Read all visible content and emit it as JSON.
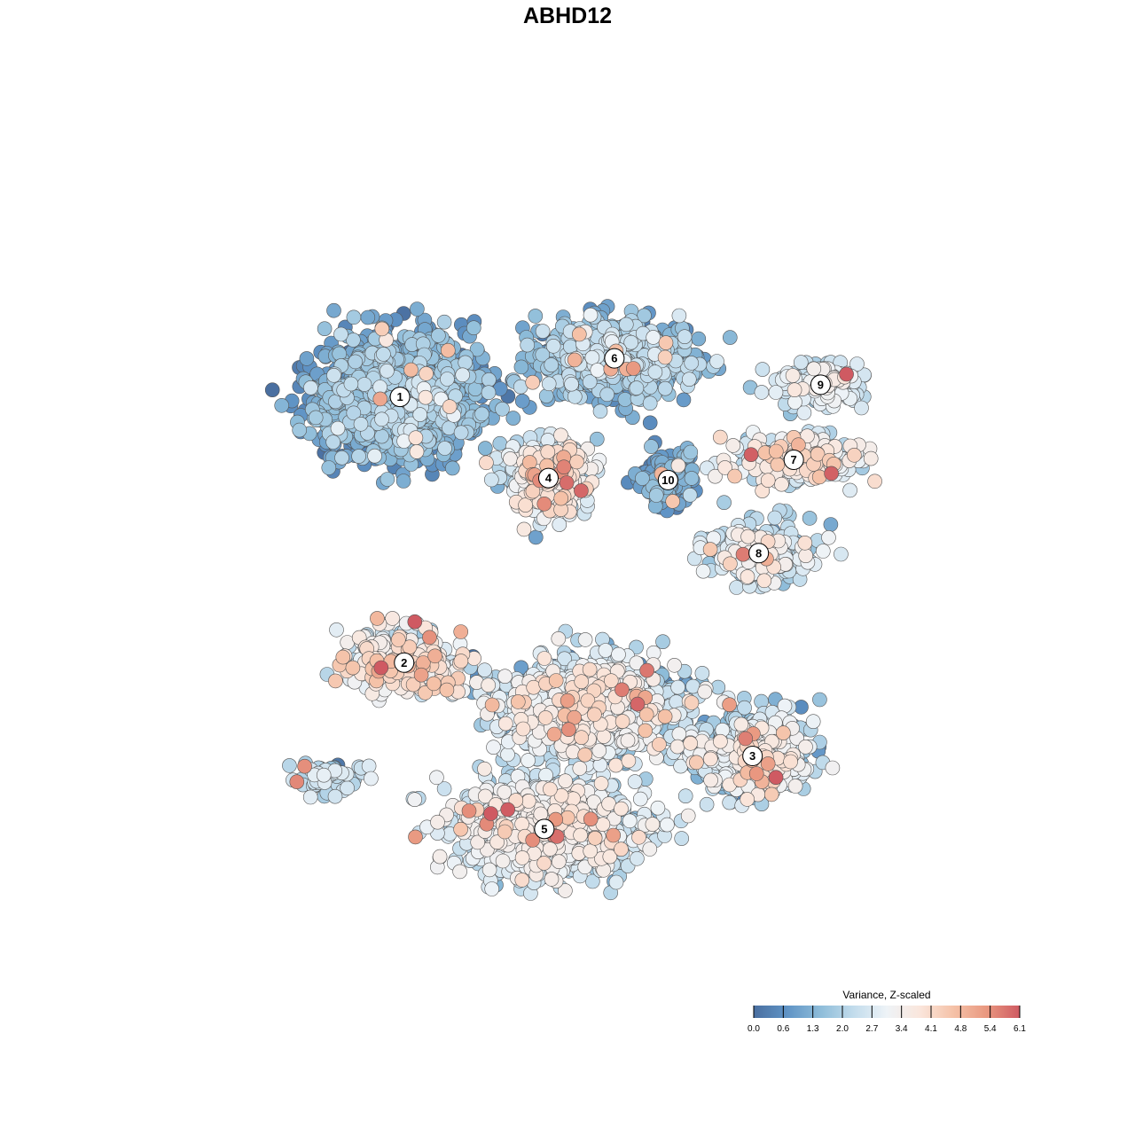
{
  "chart_data": {
    "type": "scatter",
    "title": "ABHD12",
    "legend": {
      "title": "Variance, Z-scaled",
      "range": [
        0.0,
        6.1
      ],
      "ticks": [
        "0.0",
        "0.6",
        "1.3",
        "2.0",
        "2.7",
        "3.4",
        "4.1",
        "4.8",
        "5.4",
        "6.1"
      ],
      "colors": [
        "#4a6fa0",
        "#5f93c5",
        "#8dbcd9",
        "#c2dcec",
        "#eef3f7",
        "#fae6dc",
        "#f5c2a8",
        "#e99880",
        "#cf5a62"
      ],
      "placement": "bottom-right"
    },
    "clusters": [
      {
        "label": "1",
        "x": -9.2,
        "y": 8.3,
        "sx": 3.6,
        "sy": 2.6,
        "n": 1500,
        "mean": 1.15,
        "sd": 0.6
      },
      {
        "label": "6",
        "x": 1.2,
        "y": 10.2,
        "sx": 3.4,
        "sy": 1.6,
        "n": 800,
        "mean": 1.5,
        "sd": 0.6
      },
      {
        "label": "9",
        "x": 11.2,
        "y": 8.9,
        "sx": 2.0,
        "sy": 1.0,
        "n": 180,
        "mean": 2.6,
        "sd": 0.5
      },
      {
        "label": "7",
        "x": 9.9,
        "y": 5.2,
        "sx": 2.6,
        "sy": 1.0,
        "n": 300,
        "mean": 2.9,
        "sd": 0.7
      },
      {
        "label": "4",
        "x": -2.0,
        "y": 4.3,
        "sx": 1.6,
        "sy": 1.5,
        "n": 450,
        "mean": 2.8,
        "sd": 0.8
      },
      {
        "label": "10",
        "x": 3.8,
        "y": 4.2,
        "sx": 1.2,
        "sy": 1.2,
        "n": 160,
        "mean": 0.9,
        "sd": 0.5
      },
      {
        "label": "8",
        "x": 8.2,
        "y": 0.6,
        "sx": 2.2,
        "sy": 1.2,
        "n": 360,
        "mean": 2.3,
        "sd": 0.7
      },
      {
        "label": "2",
        "x": -9.0,
        "y": -4.8,
        "sx": 2.6,
        "sy": 1.4,
        "n": 320,
        "mean": 3.2,
        "sd": 0.8
      },
      {
        "label": "3",
        "x": 7.9,
        "y": -9.4,
        "sx": 2.5,
        "sy": 1.8,
        "n": 650,
        "mean": 2.3,
        "sd": 0.9
      },
      {
        "label": "5",
        "x": -2.2,
        "y": -13.0,
        "sx": 3.7,
        "sy": 1.9,
        "n": 1300,
        "mean": 2.6,
        "sd": 0.6
      },
      {
        "label": "",
        "x": 0.0,
        "y": -7.0,
        "sx": 4.0,
        "sy": 2.2,
        "n": 1100,
        "mean": 2.5,
        "sd": 0.8
      },
      {
        "label": "",
        "x": -13.0,
        "y": -10.5,
        "sx": 1.6,
        "sy": 0.7,
        "n": 60,
        "mean": 2.1,
        "sd": 0.6
      }
    ],
    "x_range": [
      -20,
      20
    ],
    "y_range": [
      -20,
      20
    ],
    "grid": false
  }
}
